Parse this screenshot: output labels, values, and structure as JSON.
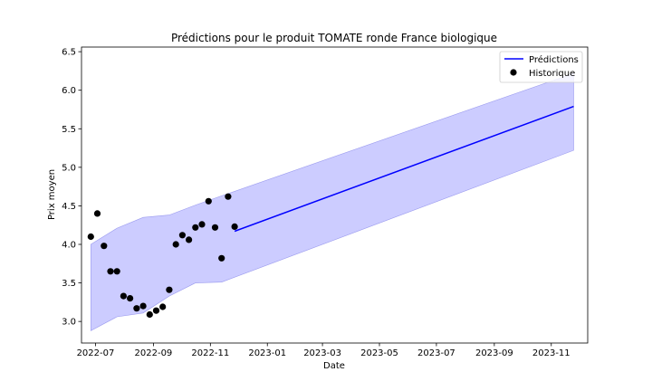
{
  "chart_data": {
    "type": "line",
    "title": "Prédictions pour le produit TOMATE ronde France biologique",
    "xlabel": "Date",
    "ylabel": "Prix moyen",
    "xlim": [
      "2022-06-16",
      "2023-12-10"
    ],
    "ylim": [
      2.72,
      6.56
    ],
    "x_ticks": [
      "2022-07-01",
      "2022-09-01",
      "2022-11-01",
      "2023-01-01",
      "2023-03-01",
      "2023-05-01",
      "2023-07-01",
      "2023-09-01",
      "2023-11-01"
    ],
    "x_tick_labels": [
      "2022-07",
      "2022-09",
      "2022-11",
      "2023-01",
      "2023-03",
      "2023-05",
      "2023-07",
      "2023-09",
      "2023-11"
    ],
    "y_ticks": [
      3.0,
      3.5,
      4.0,
      4.5,
      5.0,
      5.5,
      6.0,
      6.5
    ],
    "y_tick_labels": [
      "3.0",
      "3.5",
      "4.0",
      "4.5",
      "5.0",
      "5.5",
      "6.0",
      "6.5"
    ],
    "grid": false,
    "legend_position": "top-right",
    "colors": {
      "prediction_line": "#0000ff",
      "confidence_band": "#ccccff",
      "confidence_edge": "#9999ee",
      "historical_points": "#000000"
    },
    "series": [
      {
        "name": "Prédictions",
        "kind": "line",
        "x": [
          "2022-11-27",
          "2023-11-25"
        ],
        "y": [
          4.17,
          5.79
        ]
      },
      {
        "name": "Historique",
        "kind": "scatter",
        "x": [
          "2022-06-26",
          "2022-07-03",
          "2022-07-10",
          "2022-07-17",
          "2022-07-24",
          "2022-07-31",
          "2022-08-07",
          "2022-08-14",
          "2022-08-21",
          "2022-08-28",
          "2022-09-04",
          "2022-09-11",
          "2022-09-18",
          "2022-09-25",
          "2022-10-02",
          "2022-10-09",
          "2022-10-16",
          "2022-10-23",
          "2022-10-30",
          "2022-11-06",
          "2022-11-13",
          "2022-11-20",
          "2022-11-27"
        ],
        "y": [
          4.1,
          4.4,
          3.98,
          3.65,
          3.65,
          3.33,
          3.3,
          3.17,
          3.2,
          3.09,
          3.14,
          3.19,
          3.41,
          4.0,
          4.12,
          4.06,
          4.22,
          4.26,
          4.56,
          4.22,
          3.82,
          4.62,
          4.23
        ]
      }
    ],
    "confidence_band": {
      "x": [
        "2022-06-26",
        "2022-07-24",
        "2022-08-21",
        "2022-09-18",
        "2022-10-16",
        "2022-11-13",
        "2023-11-25"
      ],
      "lower": [
        2.88,
        3.06,
        3.11,
        3.33,
        3.5,
        3.51,
        5.22
      ],
      "upper": [
        4.0,
        4.21,
        4.35,
        4.38,
        4.51,
        4.63,
        6.22
      ]
    }
  }
}
